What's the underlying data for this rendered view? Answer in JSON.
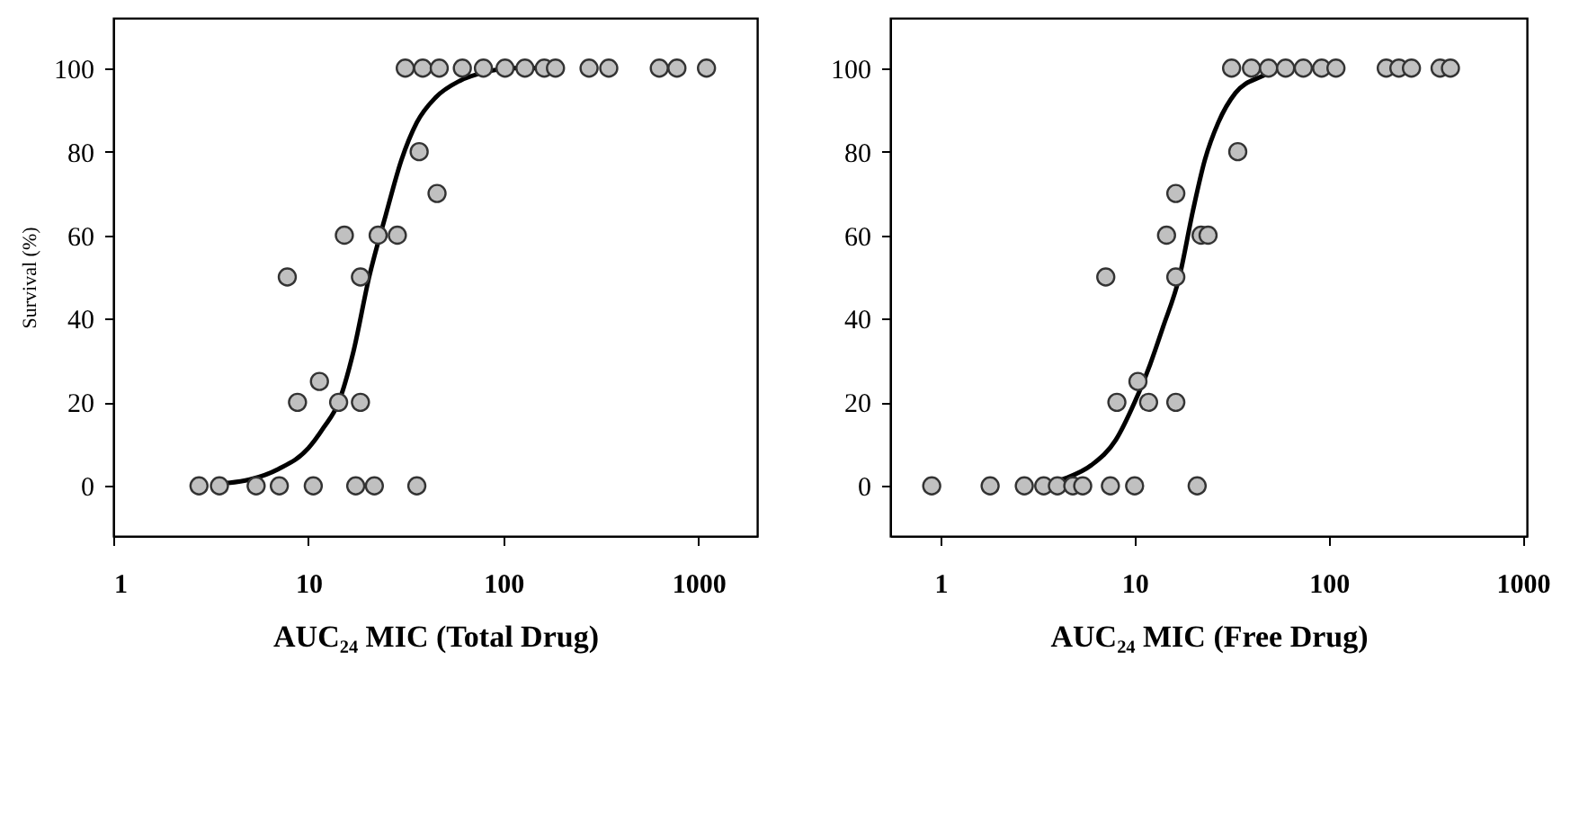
{
  "chart_data": [
    {
      "type": "scatter",
      "xlabel": "AUC₂₄ MIC (Total Drug)",
      "ylabel": "Survival (%)",
      "log": "x",
      "xlim": [
        1,
        2000
      ],
      "xticks": [
        1,
        10,
        100,
        1000
      ],
      "ylim": [
        -12,
        112
      ],
      "yticks": [
        0,
        20,
        40,
        60,
        80,
        100
      ],
      "grid": false,
      "series": [
        {
          "marker": "circle",
          "color": "#c0c0c0",
          "x": [
            2.75,
            3.5,
            5.4,
            7.1,
            10.6,
            17.5,
            21.8,
            36,
            8.8,
            14.3,
            18.5,
            11.4,
            7.8,
            18.5,
            15.3,
            22.8,
            28.6,
            45.7,
            37,
            31.4,
            38.6,
            46.9,
            61.6,
            79,
            102,
            129,
            162,
            185,
            275,
            347,
            630,
            776,
            1100
          ],
          "values": [
            0,
            0,
            0,
            0,
            0,
            0,
            0,
            0,
            20,
            20,
            20,
            25,
            50,
            50,
            60,
            60,
            60,
            70,
            80,
            100,
            100,
            100,
            100,
            100,
            100,
            100,
            100,
            100,
            100,
            100,
            100,
            100,
            100
          ]
        },
        {
          "type": "line",
          "color": "#000000",
          "x": [
            3.5,
            5,
            7,
            10,
            12,
            14.3,
            17,
            20.5,
            25,
            30,
            36,
            45,
            60,
            80,
            110,
            150
          ],
          "values": [
            0.5,
            1.5,
            4,
            9,
            14,
            20,
            32,
            50,
            65,
            78,
            87,
            93,
            97,
            99,
            100,
            100
          ]
        }
      ]
    },
    {
      "type": "scatter",
      "xlabel": "AUC₂₄ MIC (Free Drug)",
      "log": "x",
      "xlim": [
        0.55,
        1050
      ],
      "xticks": [
        1,
        10,
        100,
        1000
      ],
      "ylim": [
        -12,
        112
      ],
      "yticks": [
        0,
        20,
        40,
        60,
        80,
        100
      ],
      "grid": false,
      "series": [
        {
          "marker": "circle",
          "color": "#c0c0c0",
          "x": [
            0.9,
            1.8,
            2.7,
            3.4,
            4.0,
            4.8,
            5.4,
            7.5,
            10,
            21,
            8.1,
            11.8,
            16.3,
            10.4,
            7.1,
            16.3,
            14.6,
            22,
            23.9,
            16.3,
            34,
            31.6,
            40,
            49,
            60,
            74,
            92,
            109,
            198,
            230,
            267,
            375,
            424
          ],
          "values": [
            0,
            0,
            0,
            0,
            0,
            0,
            0,
            0,
            0,
            0,
            20,
            20,
            20,
            25,
            50,
            50,
            60,
            60,
            60,
            70,
            80,
            100,
            100,
            100,
            100,
            100,
            100,
            100,
            100,
            100,
            100,
            100,
            100
          ]
        },
        {
          "type": "line",
          "color": "#000000",
          "x": [
            3.2,
            4.5,
            6,
            8,
            10,
            12,
            14,
            17,
            20,
            23,
            27,
            33,
            45,
            60,
            90
          ],
          "values": [
            0.5,
            2,
            5,
            11,
            20,
            29,
            38,
            50,
            66,
            78,
            87,
            94,
            98,
            100,
            100
          ]
        }
      ]
    }
  ]
}
